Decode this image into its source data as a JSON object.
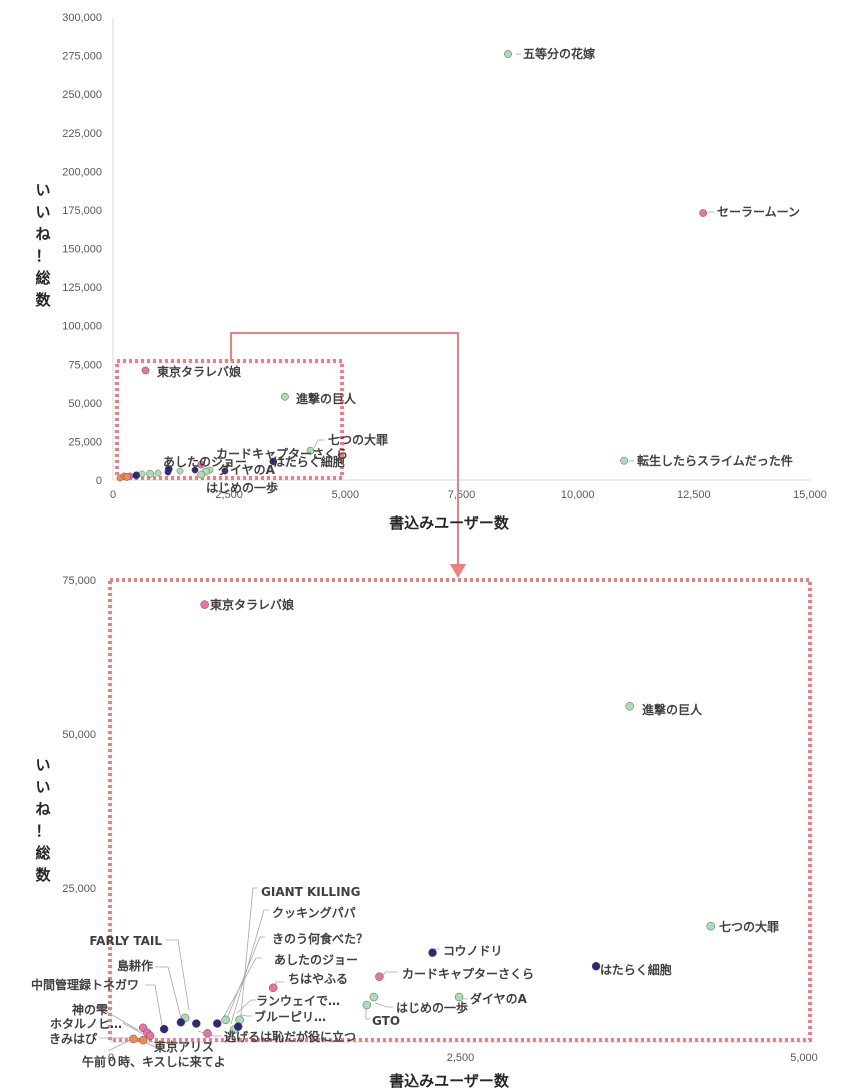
{
  "chart_data": [
    {
      "type": "scatter",
      "title": "",
      "xlabel": "書込みユーザー数",
      "ylabel": "いいね！総数",
      "xlim": [
        0,
        15000
      ],
      "ylim": [
        0,
        300000
      ],
      "xticks": [
        "0",
        "2,500",
        "5,000",
        "7,500",
        "10,000",
        "12,500",
        "15,000"
      ],
      "yticks": [
        "0",
        "25,000",
        "50,000",
        "75,000",
        "100,000",
        "125,000",
        "150,000",
        "175,000",
        "200,000",
        "225,000",
        "250,000",
        "275,000",
        "300,000"
      ],
      "points": [
        {
          "label": "五等分の花嫁",
          "x": 8500,
          "y": 276000,
          "color": "#a9dfb0"
        },
        {
          "label": "セーラームーン",
          "x": 12700,
          "y": 173000,
          "color": "#ec6fa6"
        },
        {
          "label": "東京タラレバ娘",
          "x": 700,
          "y": 71000,
          "color": "#ec6fa6"
        },
        {
          "label": "進撃の巨人",
          "x": 3700,
          "y": 54000,
          "color": "#a9dfb0"
        },
        {
          "label": "七つの大罪",
          "x": 4250,
          "y": 19000,
          "color": "#a9dfb0"
        },
        {
          "label": "転生したらスライムだった件",
          "x": 11000,
          "y": 12500,
          "color": "#a9dfb0"
        },
        {
          "label": "はたらく細胞",
          "x": 3450,
          "y": 12000,
          "color": "#2a2a7a"
        },
        {
          "label": "カードキャプターさくら",
          "x": 1900,
          "y": 10000,
          "color": "#ec6fa6"
        },
        {
          "label": "あしたのジョー",
          "x": 1200,
          "y": 7000,
          "color": "#2a2a7a"
        },
        {
          "label": "ダイヤのA",
          "x": 2000,
          "y": 5500,
          "color": "#a9dfb0"
        },
        {
          "label": "はじめの一歩",
          "x": 1900,
          "y": 3500,
          "color": "#a9dfb0"
        },
        {
          "label": "",
          "x": 300,
          "y": 2000,
          "color": "#f2894a"
        },
        {
          "label": "",
          "x": 500,
          "y": 3000,
          "color": "#2a2a7a"
        },
        {
          "label": "",
          "x": 800,
          "y": 4000,
          "color": "#a9dfb0"
        }
      ]
    },
    {
      "type": "scatter",
      "title": "",
      "xlabel": "書込みユーザー数",
      "ylabel": "いいね！総数",
      "xlim": [
        0,
        5000
      ],
      "ylim": [
        0,
        75000
      ],
      "xticks": [
        "0",
        "2,500",
        "5,000"
      ],
      "yticks": [
        "25,000",
        "50,000",
        "75,000"
      ],
      "points": [
        {
          "label": "東京タラレバ娘",
          "x": 670,
          "y": 71000,
          "color": "#ec6fa6"
        },
        {
          "label": "進撃の巨人",
          "x": 3710,
          "y": 54500,
          "color": "#a9dfb0"
        },
        {
          "label": "七つの大罪",
          "x": 4290,
          "y": 18800,
          "color": "#a9dfb0"
        },
        {
          "label": "はたらく細胞",
          "x": 3470,
          "y": 12300,
          "color": "#2a2a7a"
        },
        {
          "label": "コウノドリ",
          "x": 2300,
          "y": 14500,
          "color": "#2a2a7a"
        },
        {
          "label": "カードキャプターさくら",
          "x": 1920,
          "y": 10600,
          "color": "#ec6fa6"
        },
        {
          "label": "ダイヤのA",
          "x": 2490,
          "y": 7300,
          "color": "#a9dfb0"
        },
        {
          "label": "はじめの一歩",
          "x": 1880,
          "y": 7300,
          "color": "#a9dfb0"
        },
        {
          "label": "GTO",
          "x": 1830,
          "y": 6000,
          "color": "#a9dfb0"
        },
        {
          "label": "ちはやふる",
          "x": 1160,
          "y": 8800,
          "color": "#ec6fa6"
        },
        {
          "label": "GIANT KILLING",
          "x": 610,
          "y": 3000,
          "color": "#2a2a7a"
        },
        {
          "label": "クッキングパパ",
          "x": 760,
          "y": 3000,
          "color": "#2a2a7a"
        },
        {
          "label": "きのう何食べた？",
          "x": 820,
          "y": 3600,
          "color": "#a9dfb0"
        },
        {
          "label": "あしたのジョー",
          "x": 920,
          "y": 3600,
          "color": "#a9dfb0"
        },
        {
          "label": "ランウェイで…",
          "x": 880,
          "y": 2000,
          "color": "#a9dfb0"
        },
        {
          "label": "ブルーピリ…",
          "x": 910,
          "y": 2500,
          "color": "#2a2a7a"
        },
        {
          "label": "FARLY TAIL",
          "x": 530,
          "y": 3900,
          "color": "#a9dfb0"
        },
        {
          "label": "島耕作",
          "x": 500,
          "y": 3200,
          "color": "#2a2a7a"
        },
        {
          "label": "中間管理録トネガワ",
          "x": 380,
          "y": 2100,
          "color": "#2a2a7a"
        },
        {
          "label": "神の雫",
          "x": 230,
          "y": 2300,
          "color": "#ec6fa6"
        },
        {
          "label": "ホタルノヒ…",
          "x": 260,
          "y": 1500,
          "color": "#ec6fa6"
        },
        {
          "label": "きみはぴ",
          "x": 160,
          "y": 500,
          "color": "#f2894a"
        },
        {
          "label": "東京アリス",
          "x": 280,
          "y": 1000,
          "color": "#ec6fa6"
        },
        {
          "label": "午前０時、キスしに来てよ",
          "x": 230,
          "y": 300,
          "color": "#f2894a"
        },
        {
          "label": "逃げるは恥だが役に立つ",
          "x": 690,
          "y": 1400,
          "color": "#ec6fa6"
        }
      ]
    }
  ]
}
